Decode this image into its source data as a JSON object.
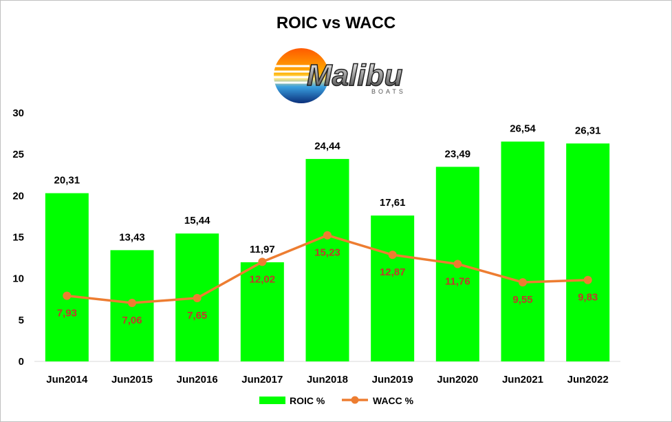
{
  "chart_data": {
    "type": "bar",
    "title": "ROIC vs WACC",
    "categories": [
      "Jun2014",
      "Jun2015",
      "Jun2016",
      "Jun2017",
      "Jun2018",
      "Jun2019",
      "Jun2020",
      "Jun2021",
      "Jun2022"
    ],
    "series": [
      {
        "name": "ROIC %",
        "type": "bar",
        "color": "#00ff00",
        "values": [
          20.31,
          13.43,
          15.44,
          11.97,
          24.44,
          17.61,
          23.49,
          26.54,
          26.31
        ],
        "labels": [
          "20,31",
          "13,43",
          "15,44",
          "11,97",
          "24,44",
          "17,61",
          "23,49",
          "26,54",
          "26,31"
        ]
      },
      {
        "name": "WACC %",
        "type": "line",
        "color": "#ed7d31",
        "values": [
          7.93,
          7.06,
          7.65,
          12.02,
          15.23,
          12.87,
          11.76,
          9.55,
          9.83
        ],
        "labels": [
          "7,93",
          "7,06",
          "7,65",
          "12,02",
          "15,23",
          "12,87",
          "11,76",
          "9,55",
          "9,83"
        ]
      }
    ],
    "ylim": [
      0,
      30
    ],
    "yticks": [
      0,
      5,
      10,
      15,
      20,
      25,
      30
    ],
    "grid": false,
    "legend": "bottom"
  },
  "logo": {
    "wordmark": "Malibu",
    "subtext": "BOATS"
  }
}
